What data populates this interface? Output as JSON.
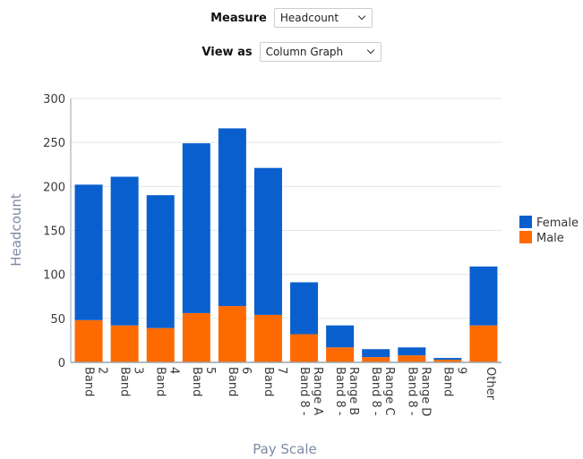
{
  "controls": {
    "measure_label": "Measure",
    "measure_value": "Headcount",
    "view_label": "View as",
    "view_value": "Column Graph"
  },
  "colors": {
    "female": "#0a5fce",
    "male": "#ff6a00",
    "grid": "#e3e6ea",
    "axis": "#9aa3ab"
  },
  "chart_data": {
    "type": "bar",
    "stacked": true,
    "xlabel": "Pay Scale",
    "ylabel": "Headcount",
    "ylim": [
      0,
      300
    ],
    "yticks": [
      0,
      50,
      100,
      150,
      200,
      250,
      300
    ],
    "grid": true,
    "legend_position": "right",
    "categories": [
      [
        "Band",
        "2"
      ],
      [
        "Band",
        "3"
      ],
      [
        "Band",
        "4"
      ],
      [
        "Band",
        "5"
      ],
      [
        "Band",
        "6"
      ],
      [
        "Band",
        "7"
      ],
      [
        "Band 8 -",
        "Range A"
      ],
      [
        "Band 8 -",
        "Range B"
      ],
      [
        "Band 8 -",
        "Range C"
      ],
      [
        "Band 8 -",
        "Range D"
      ],
      [
        "Band",
        "9"
      ],
      [
        "Other"
      ]
    ],
    "series": [
      {
        "name": "Male",
        "color": "#ff6a00",
        "values": [
          48,
          42,
          39,
          56,
          64,
          54,
          32,
          17,
          6,
          8,
          3,
          42
        ]
      },
      {
        "name": "Female",
        "color": "#0a5fce",
        "values": [
          154,
          169,
          151,
          193,
          202,
          167,
          59,
          25,
          9,
          9,
          2,
          67
        ]
      }
    ],
    "legend": [
      "Female",
      "Male"
    ]
  }
}
